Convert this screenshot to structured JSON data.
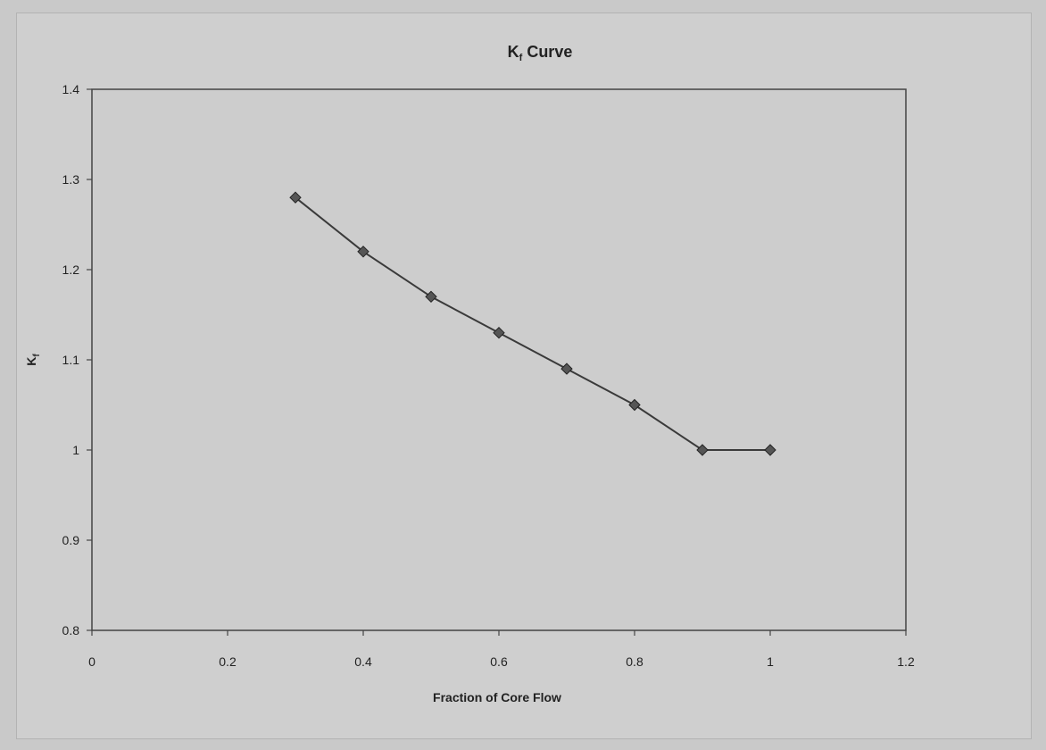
{
  "chart_data": {
    "type": "line",
    "title": "Kf Curve",
    "xlabel": "Fraction of Core Flow",
    "ylabel": "Kf",
    "xlim": [
      0,
      1.2
    ],
    "ylim": [
      0.8,
      1.4
    ],
    "x_ticks": [
      "0",
      "0.2",
      "0.4",
      "0.6",
      "0.8",
      "1",
      "1.2"
    ],
    "y_ticks": [
      "0.8",
      "0.9",
      "1",
      "1.1",
      "1.2",
      "1.3",
      "1.4"
    ],
    "grid": false,
    "legend": "none",
    "series": [
      {
        "x": [
          0.3,
          0.4,
          0.5,
          0.6,
          0.7,
          0.8,
          0.9,
          1.0
        ],
        "y": [
          1.28,
          1.22,
          1.17,
          1.13,
          1.09,
          1.05,
          1.0,
          1.0
        ],
        "color": "#3a3a3a",
        "marker": "diamond"
      }
    ]
  }
}
